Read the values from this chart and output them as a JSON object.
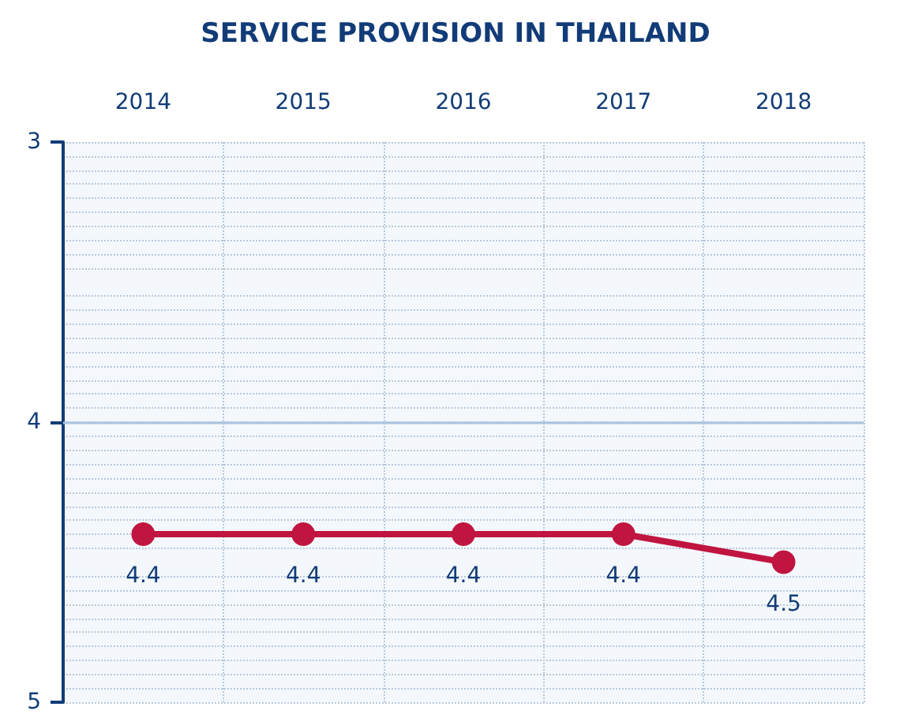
{
  "chart_data": {
    "type": "line",
    "title": "SERVICE PROVISION IN THAILAND",
    "categories": [
      "2014",
      "2015",
      "2016",
      "2017",
      "2018"
    ],
    "series": [
      {
        "color": "#c01540",
        "values": [
          4.4,
          4.4,
          4.4,
          4.4,
          4.5
        ]
      }
    ],
    "ylim": [
      5,
      3
    ],
    "yticks": [
      3,
      4,
      5
    ],
    "grid": true,
    "marker": "circle",
    "line_style": "solid",
    "data_labels": true,
    "ref_lines": [
      {
        "axis": "y",
        "value": 4,
        "color": "#a9c4e0"
      }
    ]
  }
}
